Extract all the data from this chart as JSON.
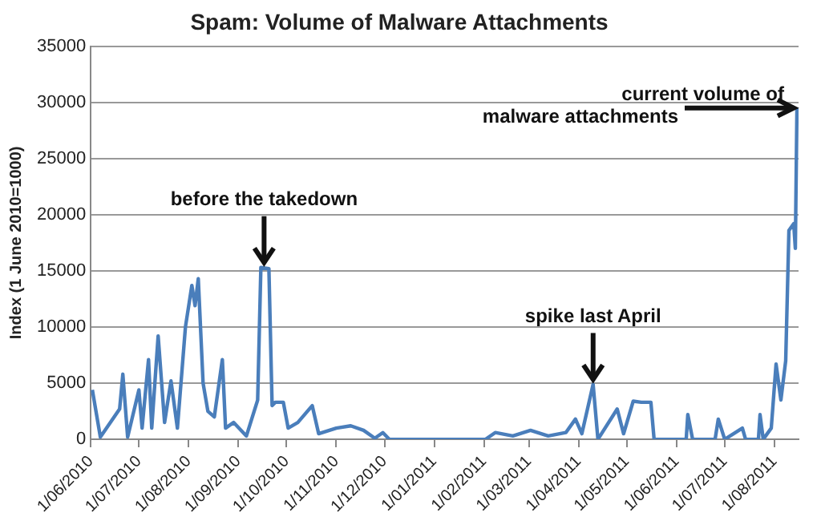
{
  "chart_data": {
    "type": "line",
    "title": "Spam: Volume of Malware Attachments",
    "ylabel": "Index (1 June 2010=1000)",
    "x": [
      "2010-06-02",
      "2010-06-07",
      "2010-06-19",
      "2010-06-21",
      "2010-06-24",
      "2010-07-01",
      "2010-07-03",
      "2010-07-07",
      "2010-07-09",
      "2010-07-13",
      "2010-07-17",
      "2010-07-21",
      "2010-07-25",
      "2010-07-30",
      "2010-08-03",
      "2010-08-05",
      "2010-08-07",
      "2010-08-10",
      "2010-08-13",
      "2010-08-17",
      "2010-08-22",
      "2010-08-24",
      "2010-08-29",
      "2010-09-06",
      "2010-09-13",
      "2010-09-15",
      "2010-09-20",
      "2010-09-22",
      "2010-09-24",
      "2010-09-29",
      "2010-10-02",
      "2010-10-08",
      "2010-10-17",
      "2010-10-21",
      "2010-11-01",
      "2010-11-10",
      "2010-11-18",
      "2010-11-25",
      "2010-11-30",
      "2010-12-04",
      "2011-01-01",
      "2011-02-02",
      "2011-02-08",
      "2011-02-19",
      "2011-03-02",
      "2011-03-13",
      "2011-03-24",
      "2011-03-30",
      "2011-04-03",
      "2011-04-10",
      "2011-04-13",
      "2011-04-25",
      "2011-04-29",
      "2011-05-05",
      "2011-05-10",
      "2011-05-16",
      "2011-05-18",
      "2011-06-07",
      "2011-06-08",
      "2011-06-11",
      "2011-06-25",
      "2011-06-27",
      "2011-07-01",
      "2011-07-12",
      "2011-07-14",
      "2011-07-22",
      "2011-07-23",
      "2011-07-25",
      "2011-07-30",
      "2011-08-02",
      "2011-08-05",
      "2011-08-08",
      "2011-08-10",
      "2011-08-13",
      "2011-08-14",
      "2011-08-15"
    ],
    "series": [
      {
        "color": "#4a7ebb",
        "values": [
          4400,
          200,
          2700,
          5800,
          200,
          4400,
          1000,
          7100,
          1000,
          9200,
          1500,
          5200,
          1000,
          10000,
          13700,
          11900,
          14300,
          5000,
          2500,
          2000,
          7100,
          1000,
          1500,
          300,
          3500,
          15300,
          15200,
          3000,
          3300,
          3300,
          1000,
          1500,
          3000,
          500,
          1000,
          1200,
          800,
          100,
          600,
          0,
          0,
          0,
          600,
          300,
          800,
          300,
          600,
          1800,
          500,
          4900,
          0,
          2700,
          500,
          3400,
          3300,
          3300,
          0,
          0,
          2200,
          0,
          0,
          1800,
          0,
          1000,
          0,
          0,
          2200,
          0,
          1000,
          6700,
          3500,
          7000,
          18600,
          19200,
          17000,
          29500
        ]
      }
    ],
    "xlim": [
      "2010-06-01",
      "2011-08-16"
    ],
    "xticks": [
      {
        "value": "2010-06-01",
        "label": "1/06/2010"
      },
      {
        "value": "2010-07-01",
        "label": "1/07/2010"
      },
      {
        "value": "2010-08-01",
        "label": "1/08/2010"
      },
      {
        "value": "2010-09-01",
        "label": "1/09/2010"
      },
      {
        "value": "2010-10-01",
        "label": "1/10/2010"
      },
      {
        "value": "2010-11-01",
        "label": "1/11/2010"
      },
      {
        "value": "2010-12-01",
        "label": "1/12/2010"
      },
      {
        "value": "2011-01-01",
        "label": "1/01/2011"
      },
      {
        "value": "2011-02-01",
        "label": "1/02/2011"
      },
      {
        "value": "2011-03-01",
        "label": "1/03/2011"
      },
      {
        "value": "2011-04-01",
        "label": "1/04/2011"
      },
      {
        "value": "2011-05-01",
        "label": "1/05/2011"
      },
      {
        "value": "2011-06-01",
        "label": "1/06/2011"
      },
      {
        "value": "2011-07-01",
        "label": "1/07/2011"
      },
      {
        "value": "2011-08-01",
        "label": "1/08/2011"
      }
    ],
    "ylim": [
      0,
      35000
    ],
    "yticks": [
      0,
      5000,
      10000,
      15000,
      20000,
      25000,
      30000,
      35000
    ],
    "grid": "y",
    "legend": false,
    "marker": "none",
    "line_style": "solid",
    "annotations": [
      {
        "text": "before the takedown",
        "x": "2010-09-17",
        "y": 15300
      },
      {
        "text": "spike last April",
        "x": "2011-04-10",
        "y": 4900
      },
      {
        "text": "current volume of\nmalware attachments",
        "x": "2011-08-15",
        "y": 29500
      }
    ]
  }
}
